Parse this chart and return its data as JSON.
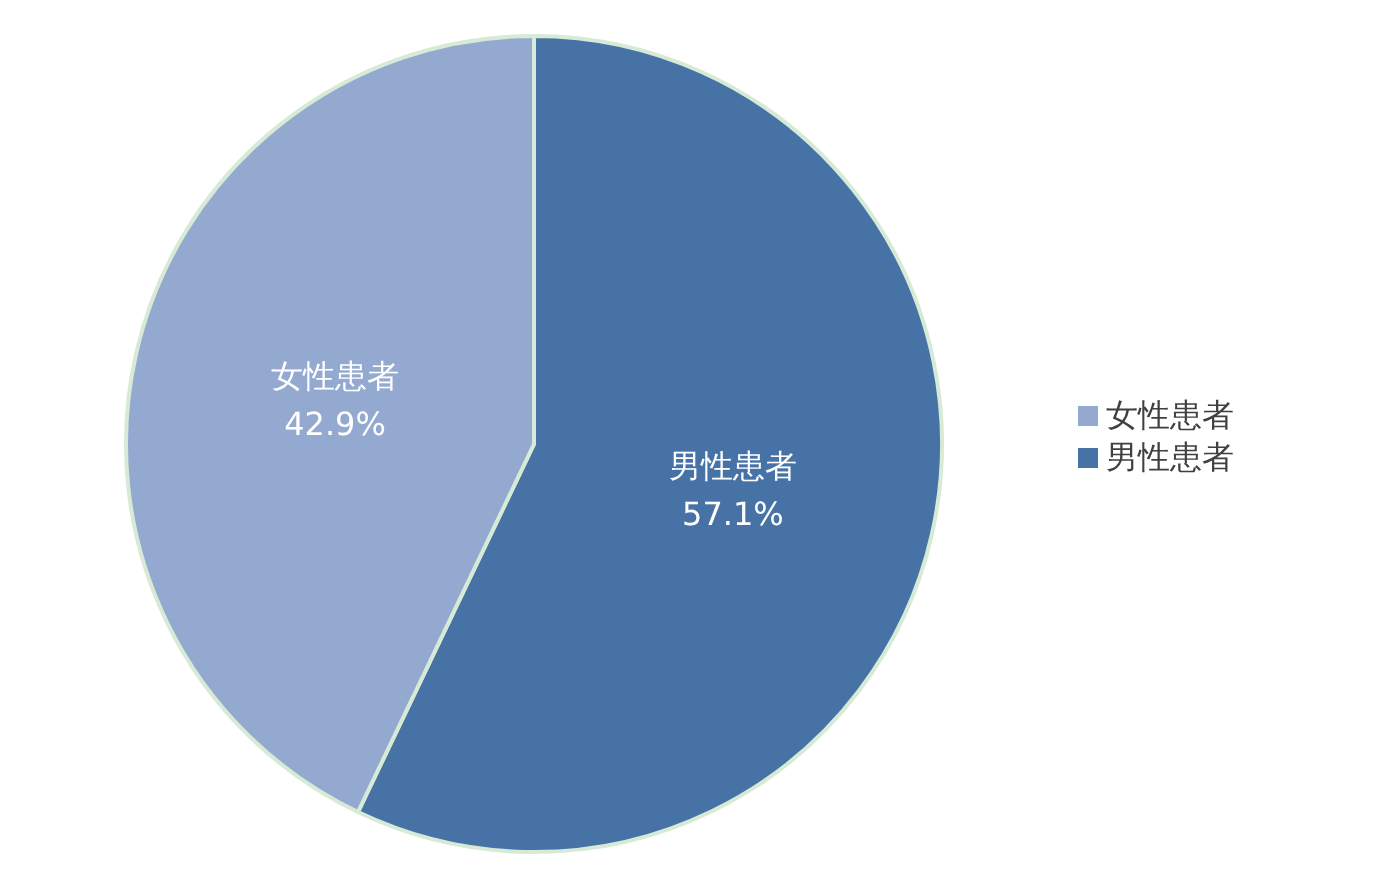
{
  "chart_data": {
    "type": "pie",
    "categories": [
      "男性患者",
      "女性患者"
    ],
    "values": [
      57.1,
      42.9
    ],
    "colors": [
      "#4672a6",
      "#94a9cf"
    ],
    "value_labels": [
      "57.1%",
      "42.9%"
    ],
    "legend": "right"
  }
}
